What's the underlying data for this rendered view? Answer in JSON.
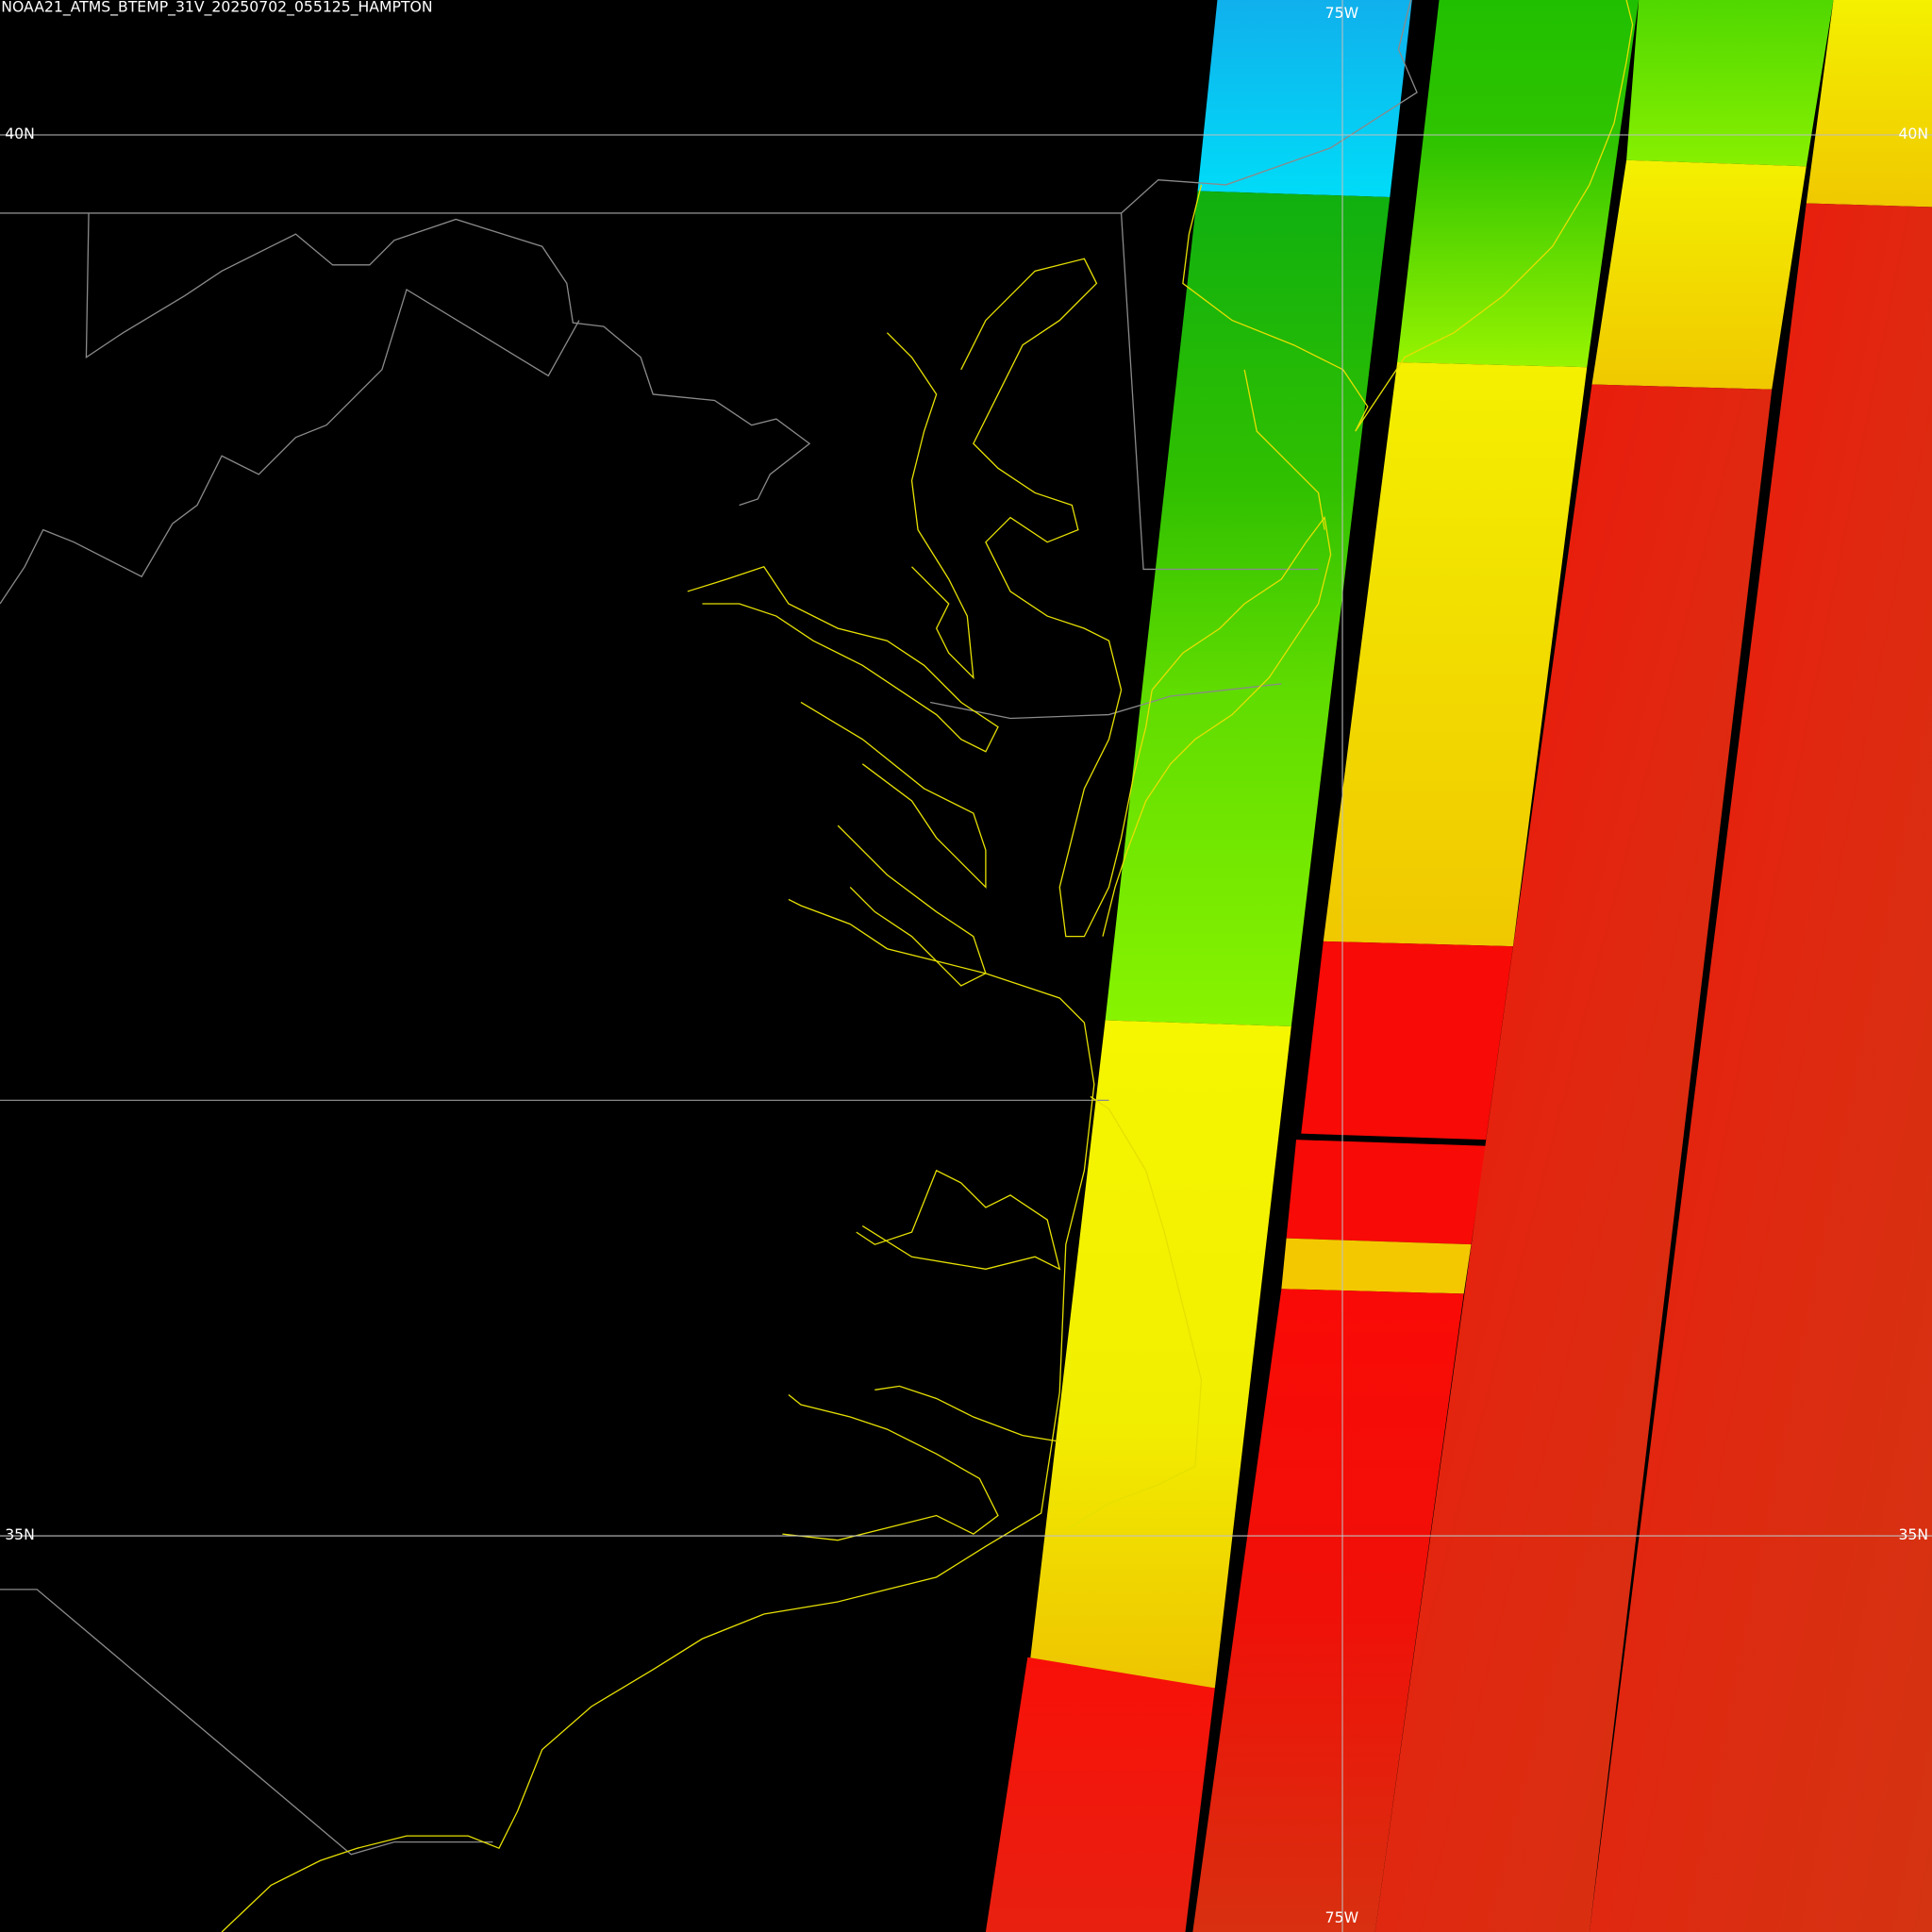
{
  "header": {
    "title": "NOAA21_ATMS_BTEMP_31V_20250702_055125_HAMPTON"
  },
  "grid_labels": {
    "latitudes": [
      "40N",
      "35N"
    ],
    "longitudes": [
      "75W"
    ]
  }
}
